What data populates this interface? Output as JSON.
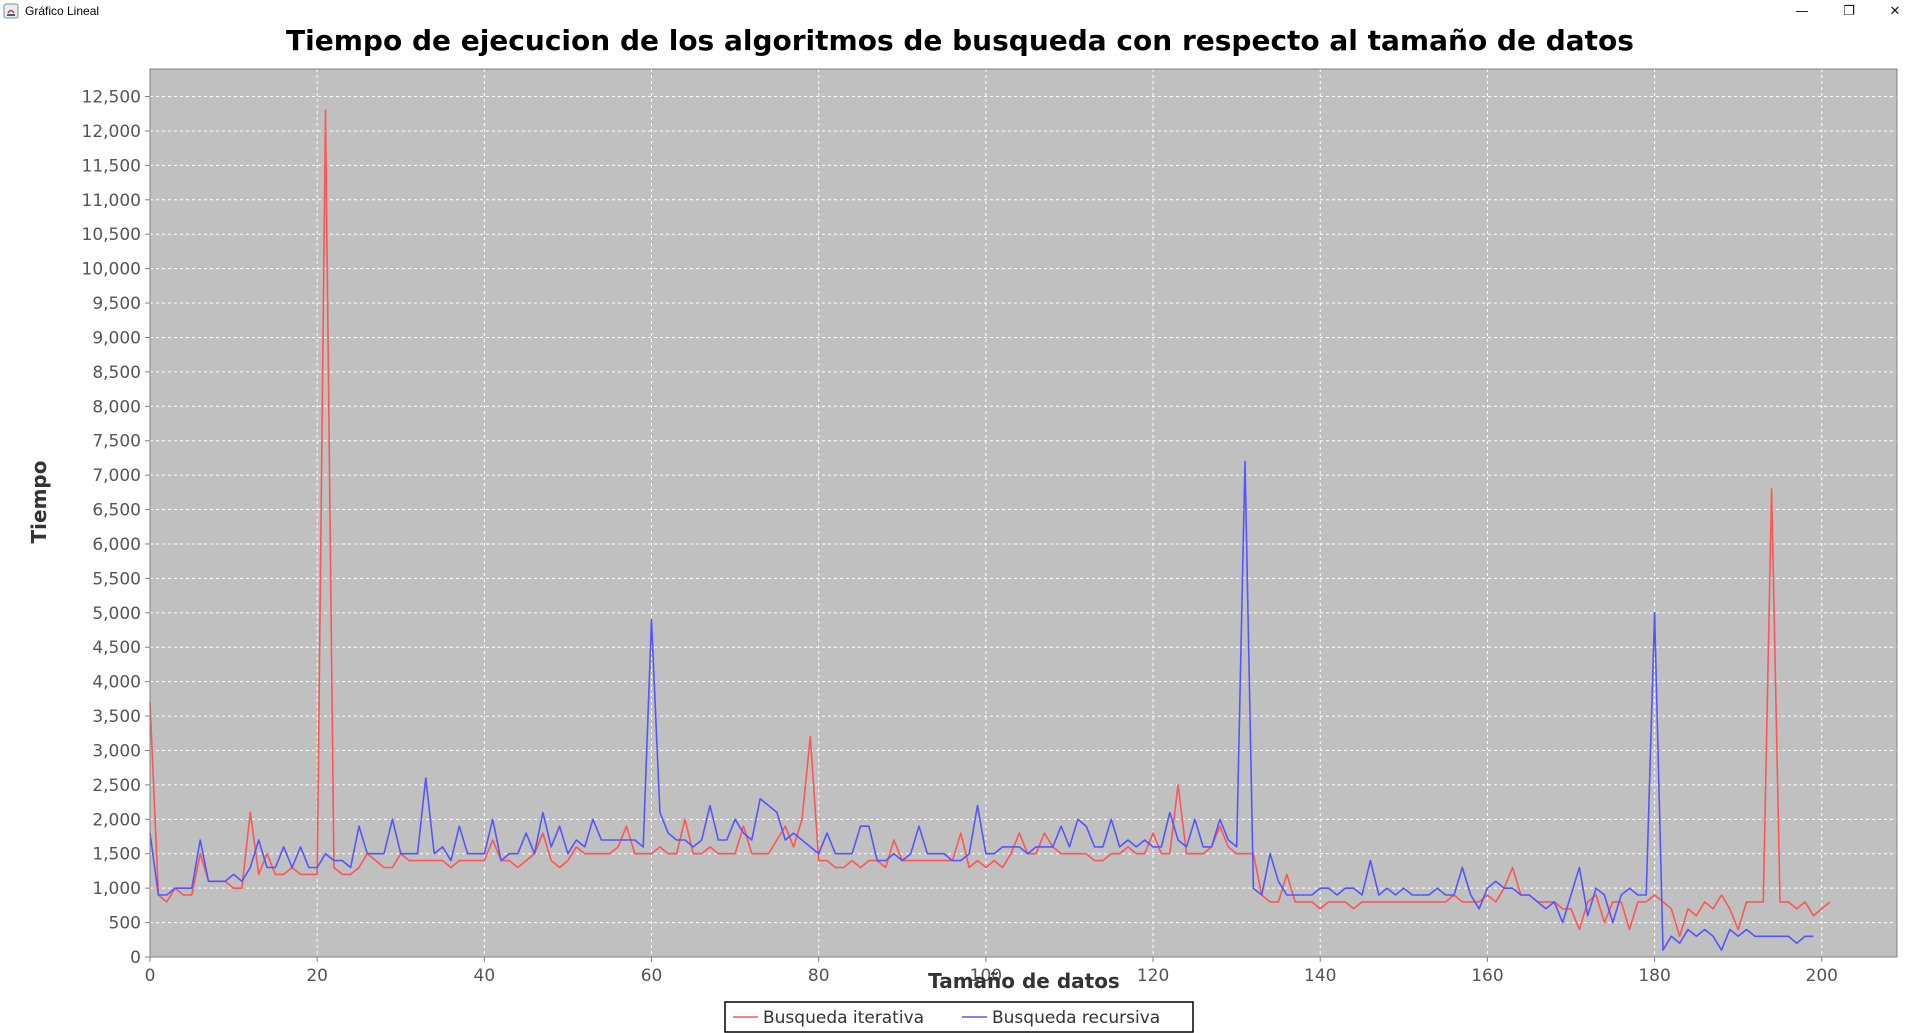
{
  "window": {
    "title": "Gráfico Lineal",
    "icon": "java-app-icon",
    "controls": {
      "minimize": "—",
      "maximize": "❐",
      "close": "✕"
    }
  },
  "chart_data": {
    "type": "line",
    "title": "Tiempo de ejecucion de los algoritmos de busqueda con respecto al tamaño de datos",
    "xlabel": "Tamaño de datos",
    "ylabel": "Tiempo",
    "xlim": [
      0,
      209
    ],
    "ylim": [
      0,
      12900
    ],
    "xticks": [
      0,
      20,
      40,
      60,
      80,
      100,
      120,
      140,
      160,
      180,
      200
    ],
    "xtick_labels": [
      "0",
      "20",
      "40",
      "60",
      "80",
      "100",
      "120",
      "140",
      "160",
      "180",
      "200"
    ],
    "yticks": [
      0,
      500,
      1000,
      1500,
      2000,
      2500,
      3000,
      3500,
      4000,
      4500,
      5000,
      5500,
      6000,
      6500,
      7000,
      7500,
      8000,
      8500,
      9000,
      9500,
      10000,
      10500,
      11000,
      11500,
      12000,
      12500
    ],
    "ytick_labels": [
      "0",
      "500",
      "1,000",
      "1,500",
      "2,000",
      "2,500",
      "3,000",
      "3,500",
      "4,000",
      "4,500",
      "5,000",
      "5,500",
      "6,000",
      "6,500",
      "7,000",
      "7,500",
      "8,000",
      "8,500",
      "9,000",
      "9,500",
      "10,000",
      "10,500",
      "11,000",
      "11,500",
      "12,000",
      "12,500"
    ],
    "grid": true,
    "background": "#c0c0c0",
    "legend_position": "bottom-center",
    "series": [
      {
        "name": "Busqueda iterativa",
        "color": "#ff5555",
        "values": [
          3700,
          900,
          800,
          1000,
          900,
          900,
          1500,
          1100,
          1100,
          1100,
          1000,
          1000,
          2100,
          1200,
          1500,
          1200,
          1200,
          1300,
          1200,
          1200,
          1200,
          12300,
          1300,
          1200,
          1200,
          1300,
          1500,
          1400,
          1300,
          1300,
          1500,
          1400,
          1400,
          1400,
          1400,
          1400,
          1300,
          1400,
          1400,
          1400,
          1400,
          1700,
          1400,
          1400,
          1300,
          1400,
          1500,
          1800,
          1400,
          1300,
          1400,
          1600,
          1500,
          1500,
          1500,
          1500,
          1600,
          1900,
          1500,
          1500,
          1500,
          1600,
          1500,
          1500,
          2000,
          1500,
          1500,
          1600,
          1500,
          1500,
          1500,
          1900,
          1500,
          1500,
          1500,
          1700,
          1900,
          1600,
          2000,
          3200,
          1400,
          1400,
          1300,
          1300,
          1400,
          1300,
          1400,
          1400,
          1300,
          1700,
          1400,
          1400,
          1400,
          1400,
          1400,
          1400,
          1400,
          1800,
          1300,
          1400,
          1300,
          1400,
          1300,
          1500,
          1800,
          1500,
          1500,
          1800,
          1600,
          1500,
          1500,
          1500,
          1500,
          1400,
          1400,
          1500,
          1500,
          1600,
          1500,
          1500,
          1800,
          1500,
          1500,
          2500,
          1500,
          1500,
          1500,
          1600,
          1900,
          1600,
          1500,
          1500,
          1500,
          900,
          800,
          800,
          1200,
          800,
          800,
          800,
          700,
          800,
          800,
          800,
          700,
          800,
          800,
          800,
          800,
          800,
          800,
          800,
          800,
          800,
          800,
          800,
          900,
          800,
          800,
          800,
          900,
          800,
          1000,
          1300,
          900,
          900,
          800,
          800,
          800,
          700,
          700,
          400,
          800,
          900,
          500,
          800,
          800,
          400,
          800,
          800,
          900,
          800,
          700,
          300,
          700,
          600,
          800,
          700,
          900,
          700,
          400,
          800,
          800,
          800,
          6800,
          800,
          800,
          700,
          800,
          600,
          700,
          800
        ]
      },
      {
        "name": "Busqueda recursiva",
        "color": "#5555ff",
        "values": [
          1800,
          900,
          900,
          1000,
          1000,
          1000,
          1700,
          1100,
          1100,
          1100,
          1200,
          1100,
          1300,
          1700,
          1300,
          1300,
          1600,
          1300,
          1600,
          1300,
          1300,
          1500,
          1400,
          1400,
          1300,
          1900,
          1500,
          1500,
          1500,
          2000,
          1500,
          1500,
          1500,
          2600,
          1500,
          1600,
          1400,
          1900,
          1500,
          1500,
          1500,
          2000,
          1400,
          1500,
          1500,
          1800,
          1500,
          2100,
          1600,
          1900,
          1500,
          1700,
          1600,
          2000,
          1700,
          1700,
          1700,
          1700,
          1700,
          1600,
          4900,
          2100,
          1800,
          1700,
          1700,
          1600,
          1700,
          2200,
          1700,
          1700,
          2000,
          1800,
          1700,
          2300,
          2200,
          2100,
          1700,
          1800,
          1700,
          1600,
          1500,
          1800,
          1500,
          1500,
          1500,
          1900,
          1900,
          1400,
          1400,
          1500,
          1400,
          1500,
          1900,
          1500,
          1500,
          1500,
          1400,
          1400,
          1500,
          2200,
          1500,
          1500,
          1600,
          1600,
          1600,
          1500,
          1600,
          1600,
          1600,
          1900,
          1600,
          2000,
          1900,
          1600,
          1600,
          2000,
          1600,
          1700,
          1600,
          1700,
          1600,
          1600,
          2100,
          1700,
          1600,
          2000,
          1600,
          1600,
          2000,
          1700,
          1600,
          7200,
          1000,
          900,
          1500,
          1100,
          900,
          900,
          900,
          900,
          1000,
          1000,
          900,
          1000,
          1000,
          900,
          1400,
          900,
          1000,
          900,
          1000,
          900,
          900,
          900,
          1000,
          900,
          900,
          1300,
          900,
          700,
          1000,
          1100,
          1000,
          1000,
          900,
          900,
          800,
          700,
          800,
          500,
          900,
          1300,
          600,
          1000,
          900,
          500,
          900,
          1000,
          900,
          900,
          5000,
          100,
          300,
          200,
          400,
          300,
          400,
          300,
          100,
          400,
          300,
          400,
          300,
          300,
          300,
          300,
          300,
          200,
          300,
          300
        ]
      }
    ]
  }
}
